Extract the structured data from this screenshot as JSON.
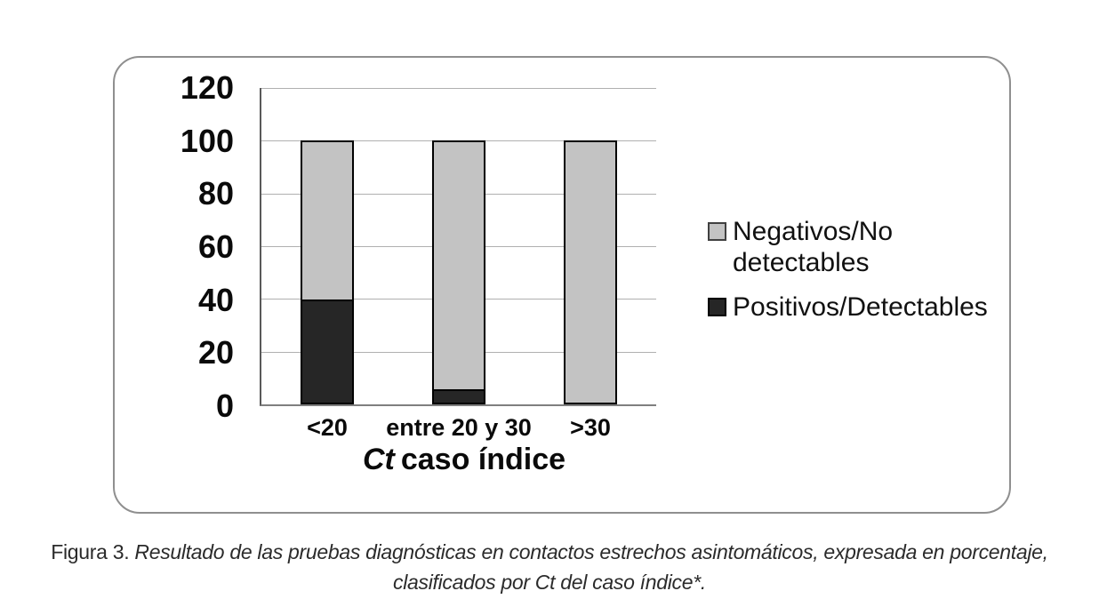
{
  "figure": {
    "caption_prefix": "Figura 3.",
    "caption_line1": "Resultado de las pruebas diagnósticas en contactos estrechos asintomáticos, expresada en porcentaje,",
    "caption_line2": "clasificados por Ct del caso índice*."
  },
  "chart_data": {
    "type": "bar",
    "stacked": true,
    "unit": "percent",
    "categories": [
      "<20",
      "entre 20 y 30",
      ">30"
    ],
    "series": [
      {
        "name": "Positivos/Detectables",
        "color": "#262626",
        "values": [
          39,
          5,
          0
        ]
      },
      {
        "name": "Negativos/No detectables",
        "color": "#c3c3c3",
        "values": [
          61,
          95,
          100
        ]
      }
    ],
    "xlabel_italic": "Ct",
    "xlabel_rest": "caso índice",
    "ylabel": "",
    "ylim": [
      0,
      120
    ],
    "y_ticks": [
      0,
      20,
      40,
      60,
      80,
      100,
      120
    ],
    "grid": true,
    "legend_position": "right"
  },
  "colors": {
    "grid": "#b0b0b0",
    "axis_y": "#595959",
    "axis_x": "#7f7f7f",
    "bar_border": "#000000",
    "panel_border": "#8f8f8f"
  }
}
